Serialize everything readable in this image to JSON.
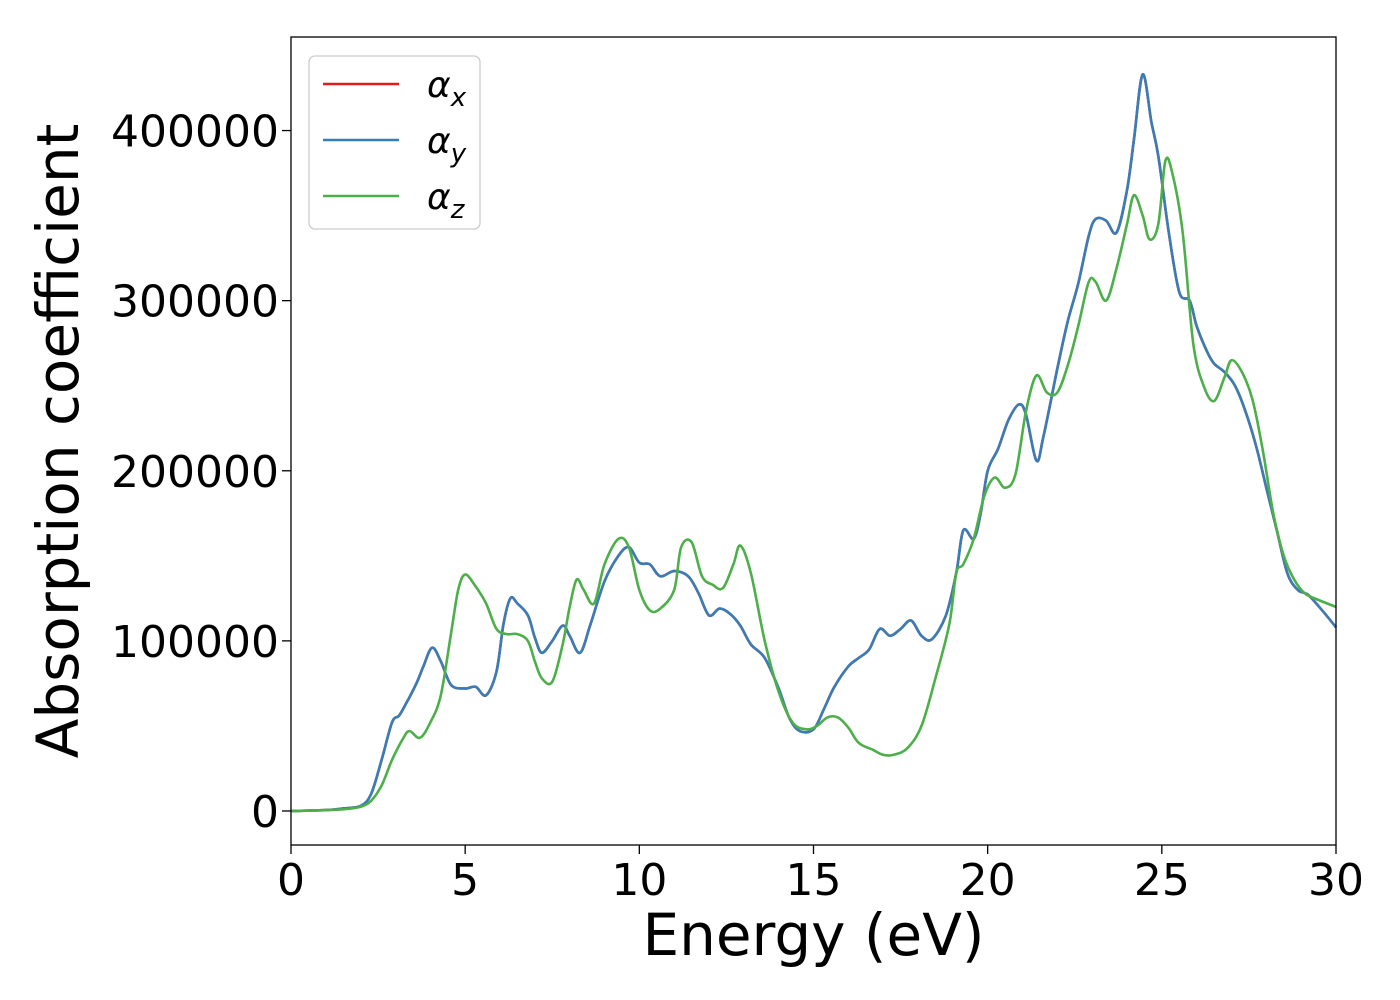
{
  "chart_data": {
    "type": "line",
    "xlabel": "Energy (eV)",
    "ylabel": "Absorption coefficient",
    "xlim": [
      0,
      30
    ],
    "ylim": [
      -20000,
      455000
    ],
    "xticks": [
      0,
      5,
      10,
      15,
      20,
      25,
      30
    ],
    "yticks": [
      0,
      100000,
      200000,
      300000,
      400000
    ],
    "xtick_labels": [
      "0",
      "5",
      "10",
      "15",
      "20",
      "25",
      "30"
    ],
    "ytick_labels": [
      "0",
      "100000",
      "200000",
      "300000",
      "400000"
    ],
    "grid": false,
    "legend_position": "upper-left",
    "series": [
      {
        "name": "αx",
        "legend_main": "α",
        "legend_sub": "x",
        "color": "#e41a1c",
        "x": [
          0,
          1,
          1.5,
          2,
          2.3,
          2.6,
          2.9,
          3.1,
          3.3,
          3.6,
          3.8,
          4.05,
          4.3,
          4.6,
          5.0,
          5.3,
          5.6,
          5.9,
          6.1,
          6.3,
          6.5,
          6.8,
          7.0,
          7.2,
          7.5,
          7.8,
          8.0,
          8.3,
          8.6,
          9.0,
          9.4,
          9.7,
          10.0,
          10.3,
          10.6,
          11.0,
          11.4,
          11.7,
          12.0,
          12.3,
          12.6,
          12.9,
          13.2,
          13.6,
          14.0,
          14.3,
          14.6,
          15.0,
          15.3,
          15.6,
          16.0,
          16.3,
          16.6,
          16.9,
          17.2,
          17.5,
          17.8,
          18.1,
          18.4,
          18.8,
          19.1,
          19.3,
          19.6,
          19.8,
          20.0,
          20.3,
          20.6,
          20.9,
          21.1,
          21.4,
          21.6,
          22.0,
          22.3,
          22.6,
          22.9,
          23.1,
          23.4,
          23.7,
          24.0,
          24.2,
          24.45,
          24.7,
          24.9,
          25.2,
          25.5,
          25.8,
          26.0,
          26.3,
          26.5,
          26.8,
          27.1,
          27.4,
          27.7,
          28.0,
          28.3,
          28.6,
          28.9,
          29.2,
          29.6,
          30.0
        ],
        "y": [
          0,
          500,
          1500,
          3000,
          10000,
          30000,
          52000,
          56000,
          63000,
          75000,
          85000,
          96000,
          88000,
          74000,
          72000,
          73000,
          68000,
          82000,
          110000,
          125000,
          122000,
          115000,
          102000,
          93000,
          100000,
          109000,
          103000,
          93000,
          110000,
          135000,
          150000,
          155000,
          146000,
          145000,
          138000,
          141000,
          138000,
          128000,
          115000,
          119000,
          116000,
          109000,
          98000,
          90000,
          72000,
          55000,
          47000,
          48000,
          60000,
          73000,
          85000,
          90000,
          95000,
          107000,
          103000,
          107000,
          112000,
          103000,
          101000,
          115000,
          140000,
          165000,
          160000,
          175000,
          200000,
          213000,
          230000,
          239000,
          233000,
          206000,
          220000,
          260000,
          288000,
          310000,
          338000,
          348000,
          347000,
          340000,
          365000,
          395000,
          433000,
          405000,
          385000,
          340000,
          305000,
          300000,
          285000,
          270000,
          263000,
          258000,
          250000,
          235000,
          215000,
          190000,
          165000,
          140000,
          130000,
          127000,
          118000,
          108000
        ]
      },
      {
        "name": "αy",
        "legend_main": "α",
        "legend_sub": "y",
        "color": "#377eb8",
        "x": [
          0,
          1,
          1.5,
          2,
          2.3,
          2.6,
          2.9,
          3.1,
          3.3,
          3.6,
          3.8,
          4.05,
          4.3,
          4.6,
          5.0,
          5.3,
          5.6,
          5.9,
          6.1,
          6.3,
          6.5,
          6.8,
          7.0,
          7.2,
          7.5,
          7.8,
          8.0,
          8.3,
          8.6,
          9.0,
          9.4,
          9.7,
          10.0,
          10.3,
          10.6,
          11.0,
          11.4,
          11.7,
          12.0,
          12.3,
          12.6,
          12.9,
          13.2,
          13.6,
          14.0,
          14.3,
          14.6,
          15.0,
          15.3,
          15.6,
          16.0,
          16.3,
          16.6,
          16.9,
          17.2,
          17.5,
          17.8,
          18.1,
          18.4,
          18.8,
          19.1,
          19.3,
          19.6,
          19.8,
          20.0,
          20.3,
          20.6,
          20.9,
          21.1,
          21.4,
          21.6,
          22.0,
          22.3,
          22.6,
          22.9,
          23.1,
          23.4,
          23.7,
          24.0,
          24.2,
          24.45,
          24.7,
          24.9,
          25.2,
          25.5,
          25.8,
          26.0,
          26.3,
          26.5,
          26.8,
          27.1,
          27.4,
          27.7,
          28.0,
          28.3,
          28.6,
          28.9,
          29.2,
          29.6,
          30.0
        ],
        "y": [
          0,
          500,
          1500,
          3000,
          10000,
          30000,
          52000,
          56000,
          63000,
          75000,
          85000,
          96000,
          88000,
          74000,
          72000,
          73000,
          68000,
          82000,
          110000,
          125000,
          122000,
          115000,
          102000,
          93000,
          100000,
          109000,
          103000,
          93000,
          110000,
          135000,
          150000,
          155000,
          146000,
          145000,
          138000,
          141000,
          138000,
          128000,
          115000,
          119000,
          116000,
          109000,
          98000,
          90000,
          72000,
          55000,
          47000,
          48000,
          60000,
          73000,
          85000,
          90000,
          95000,
          107000,
          103000,
          107000,
          112000,
          103000,
          101000,
          115000,
          140000,
          165000,
          160000,
          175000,
          200000,
          213000,
          230000,
          239000,
          233000,
          206000,
          220000,
          260000,
          288000,
          310000,
          338000,
          348000,
          347000,
          340000,
          365000,
          395000,
          433000,
          405000,
          385000,
          340000,
          305000,
          300000,
          285000,
          270000,
          263000,
          258000,
          250000,
          235000,
          215000,
          190000,
          165000,
          140000,
          130000,
          127000,
          118000,
          108000
        ]
      },
      {
        "name": "αz",
        "legend_main": "α",
        "legend_sub": "z",
        "color": "#4daf4a",
        "x": [
          0,
          1,
          1.5,
          2,
          2.3,
          2.6,
          2.9,
          3.2,
          3.4,
          3.7,
          4.0,
          4.3,
          4.6,
          4.8,
          5.0,
          5.3,
          5.6,
          5.9,
          6.2,
          6.5,
          6.8,
          7.0,
          7.2,
          7.5,
          7.8,
          8.0,
          8.2,
          8.4,
          8.7,
          9.0,
          9.4,
          9.7,
          10.0,
          10.3,
          10.6,
          11.0,
          11.2,
          11.5,
          11.8,
          12.1,
          12.4,
          12.7,
          12.9,
          13.2,
          13.6,
          14.0,
          14.4,
          14.8,
          15.1,
          15.4,
          15.7,
          16.0,
          16.3,
          16.7,
          17.0,
          17.3,
          17.7,
          18.1,
          18.5,
          18.9,
          19.1,
          19.3,
          19.6,
          19.9,
          20.2,
          20.5,
          20.8,
          21.1,
          21.4,
          21.7,
          22.0,
          22.3,
          22.6,
          22.9,
          23.1,
          23.4,
          23.7,
          24.0,
          24.2,
          24.45,
          24.65,
          24.9,
          25.1,
          25.3,
          25.6,
          25.9,
          26.2,
          26.5,
          26.8,
          27.0,
          27.3,
          27.6,
          27.9,
          28.2,
          28.5,
          28.8,
          29.1,
          29.5,
          30.0
        ],
        "y": [
          0,
          500,
          1000,
          2500,
          6000,
          15000,
          30000,
          42000,
          47000,
          43000,
          52000,
          68000,
          105000,
          130000,
          139000,
          132000,
          122000,
          107000,
          104000,
          104000,
          100000,
          88000,
          78000,
          76000,
          98000,
          120000,
          136000,
          130000,
          122000,
          145000,
          160000,
          155000,
          130000,
          118000,
          119000,
          130000,
          155000,
          158000,
          138000,
          133000,
          131000,
          145000,
          156000,
          140000,
          100000,
          70000,
          52000,
          48000,
          50000,
          55000,
          55000,
          49000,
          40000,
          36000,
          33000,
          33000,
          37000,
          50000,
          78000,
          110000,
          140000,
          145000,
          160000,
          185000,
          196000,
          190000,
          198000,
          235000,
          256000,
          246000,
          246000,
          262000,
          285000,
          311000,
          311000,
          300000,
          319000,
          345000,
          362000,
          350000,
          336000,
          345000,
          382000,
          375000,
          340000,
          275000,
          250000,
          241000,
          255000,
          265000,
          258000,
          242000,
          212000,
          175000,
          150000,
          136000,
          128000,
          124000,
          120000
        ]
      }
    ]
  }
}
